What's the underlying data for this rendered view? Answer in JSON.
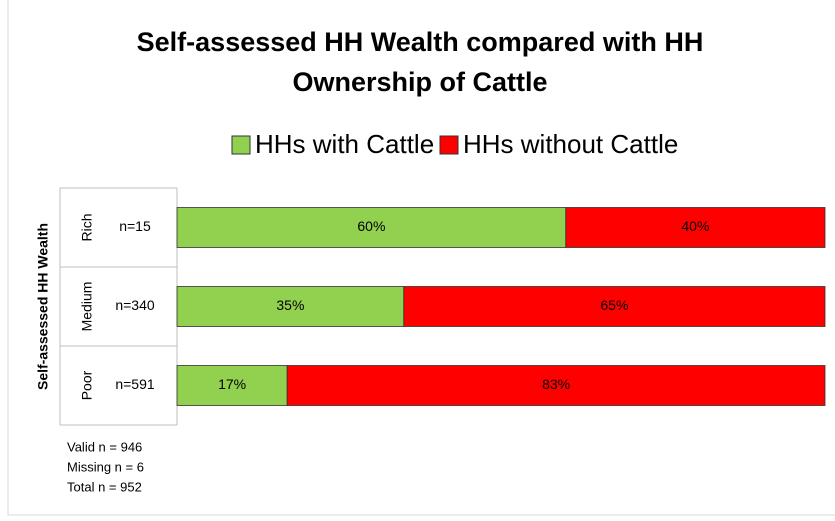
{
  "chart_data": {
    "type": "bar",
    "orientation": "horizontal",
    "stacked": true,
    "title": "Self-assessed HH Wealth compared with HH Ownership of Cattle",
    "legend": "top",
    "y_label": "Self-assessed HH Wealth",
    "categories": [
      "Rich",
      "Medium",
      "Poor"
    ],
    "category_notes": [
      "n=15",
      "n=340",
      "n=591"
    ],
    "series": [
      {
        "name": "HHs with Cattle",
        "color": "#92d050",
        "values": [
          60,
          35,
          17
        ],
        "value_labels": [
          "60%",
          "35%",
          "17%"
        ]
      },
      {
        "name": "HHs without Cattle",
        "color": "#ff0000",
        "values": [
          40,
          65,
          83
        ],
        "value_labels": [
          "40%",
          "65%",
          "83%"
        ]
      }
    ],
    "xlim": [
      0,
      100
    ],
    "notes": [
      "Valid n = 946",
      "Missing n = 6",
      "Total n = 952"
    ]
  }
}
